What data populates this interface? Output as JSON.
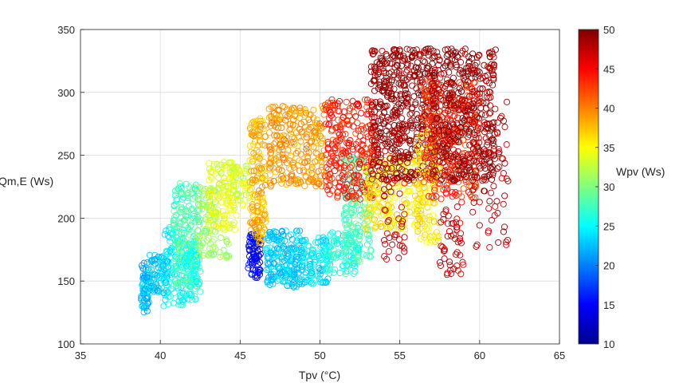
{
  "chart_data": {
    "type": "scatter",
    "xlabel": "Tpv (°C)",
    "ylabel": "Qm,E (Ws)",
    "colorbar_label": "Wpv (Ws)",
    "xlim": [
      35,
      65
    ],
    "ylim": [
      100,
      350
    ],
    "clim": [
      10,
      50
    ],
    "grid": true,
    "colormap": "jet",
    "marker": "open circle",
    "x_ticks": [
      "35",
      "40",
      "45",
      "50",
      "55",
      "60",
      "65"
    ],
    "y_ticks": [
      "100",
      "150",
      "200",
      "250",
      "300",
      "350"
    ],
    "c_ticks": [
      "10",
      "15",
      "20",
      "25",
      "30",
      "35",
      "40",
      "45",
      "50"
    ],
    "clusters": [
      {
        "x": [
          38.8,
          39.3
        ],
        "y": [
          125,
          165
        ],
        "c": 22,
        "n": 70
      },
      {
        "x": [
          39.3,
          40.5
        ],
        "y": [
          140,
          172
        ],
        "c": 23,
        "n": 90
      },
      {
        "x": [
          40.2,
          41.5
        ],
        "y": [
          130,
          195
        ],
        "c": 25,
        "n": 90
      },
      {
        "x": [
          40.8,
          42.5
        ],
        "y": [
          145,
          228
        ],
        "c": 28,
        "n": 200
      },
      {
        "x": [
          41.5,
          42.5
        ],
        "y": [
          135,
          175
        ],
        "c": 26,
        "n": 70
      },
      {
        "x": [
          42.3,
          43.5
        ],
        "y": [
          170,
          225
        ],
        "c": 31,
        "n": 90
      },
      {
        "x": [
          43.0,
          44.8
        ],
        "y": [
          190,
          245
        ],
        "c": 34,
        "n": 140
      },
      {
        "x": [
          43.7,
          44.3
        ],
        "y": [
          168,
          185
        ],
        "c": 31,
        "n": 15
      },
      {
        "x": [
          44.5,
          45.6
        ],
        "y": [
          210,
          242
        ],
        "c": 33,
        "n": 50
      },
      {
        "x": [
          45.5,
          46.3
        ],
        "y": [
          152,
          188
        ],
        "c": 15,
        "n": 90
      },
      {
        "x": [
          45.6,
          46.6
        ],
        "y": [
          180,
          280
        ],
        "c": 38,
        "n": 160
      },
      {
        "x": [
          46.6,
          49.0
        ],
        "y": [
          145,
          190
        ],
        "c": 23,
        "n": 220
      },
      {
        "x": [
          49.0,
          50.5
        ],
        "y": [
          148,
          185
        ],
        "c": 24,
        "n": 90
      },
      {
        "x": [
          46.8,
          50.3
        ],
        "y": [
          225,
          290
        ],
        "c": 39,
        "n": 280
      },
      {
        "x": [
          50.3,
          52.5
        ],
        "y": [
          155,
          190
        ],
        "c": 26,
        "n": 110
      },
      {
        "x": [
          51.5,
          53.2
        ],
        "y": [
          165,
          250
        ],
        "c": 28,
        "n": 150
      },
      {
        "x": [
          50.3,
          53.5
        ],
        "y": [
          215,
          295
        ],
        "c": 44,
        "n": 280
      },
      {
        "x": [
          52.8,
          56.5
        ],
        "y": [
          190,
          250
        ],
        "c": 36,
        "n": 200
      },
      {
        "x": [
          53.2,
          57.2
        ],
        "y": [
          230,
          335
        ],
        "c": 49,
        "n": 520
      },
      {
        "x": [
          54.0,
          55.3
        ],
        "y": [
          165,
          235
        ],
        "c": 47,
        "n": 40
      },
      {
        "x": [
          56.0,
          57.5
        ],
        "y": [
          180,
          270
        ],
        "c": 36,
        "n": 120
      },
      {
        "x": [
          56.5,
          60.0
        ],
        "y": [
          215,
          310
        ],
        "c": 43,
        "n": 300
      },
      {
        "x": [
          57.0,
          61.0
        ],
        "y": [
          230,
          335
        ],
        "c": 49,
        "n": 420
      },
      {
        "x": [
          57.5,
          59.0
        ],
        "y": [
          155,
          215
        ],
        "c": 47,
        "n": 50
      },
      {
        "x": [
          59.5,
          61.8
        ],
        "y": [
          175,
          295
        ],
        "c": 48,
        "n": 90
      }
    ]
  }
}
